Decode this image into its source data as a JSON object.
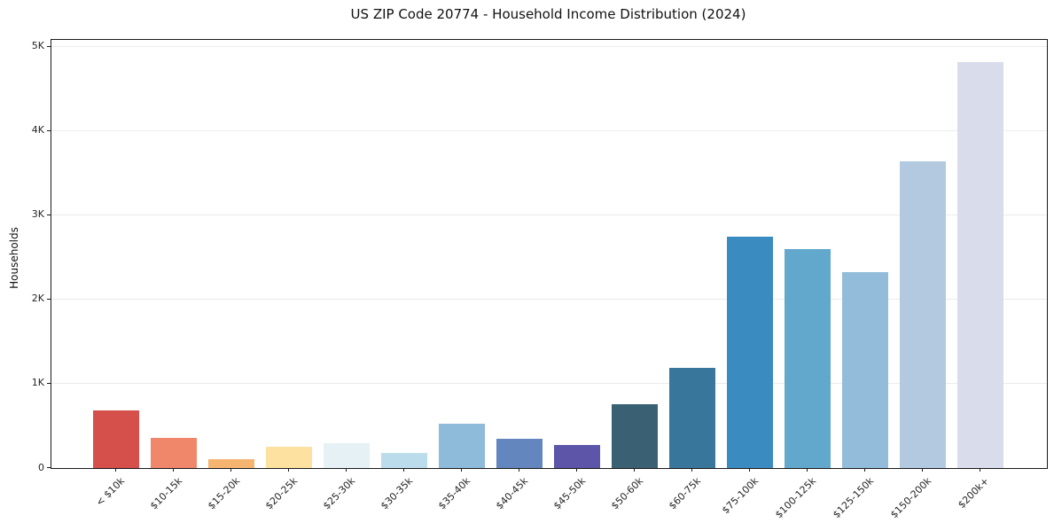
{
  "chart_data": {
    "type": "bar",
    "title": "US ZIP Code 20774 - Household Income Distribution (2024)",
    "xlabel": "",
    "ylabel": "Households",
    "categories": [
      "< $10k",
      "$10-15k",
      "$15-20k",
      "$20-25k",
      "$25-30k",
      "$30-35k",
      "$35-40k",
      "$40-45k",
      "$45-50k",
      "$50-60k",
      "$60-75k",
      "$75-100k",
      "$100-125k",
      "$125-150k",
      "$150-200k",
      "$200k+"
    ],
    "values": [
      685,
      360,
      110,
      255,
      295,
      180,
      530,
      345,
      275,
      760,
      1190,
      2740,
      2600,
      2320,
      3640,
      4820
    ],
    "bar_colors": [
      "#d5504a",
      "#f0866a",
      "#f6b471",
      "#fce1a0",
      "#e6f1f5",
      "#bbddeb",
      "#8fbbdb",
      "#6286bd",
      "#5c55a8",
      "#3a6073",
      "#38769c",
      "#3a8cc0",
      "#62a8cc",
      "#92bcda",
      "#b3c9e0",
      "#d9dcea"
    ],
    "ytick_labels": [
      "0",
      "1K",
      "2K",
      "3K",
      "4K",
      "5K"
    ],
    "ytick_values": [
      0,
      1000,
      2000,
      3000,
      4000,
      5000
    ],
    "ylim": [
      0,
      5080
    ],
    "grid": "horizontal",
    "grid_color": "#ebebeb",
    "background": "#ffffff",
    "x_tick_rotation": 45,
    "legend": "none"
  }
}
